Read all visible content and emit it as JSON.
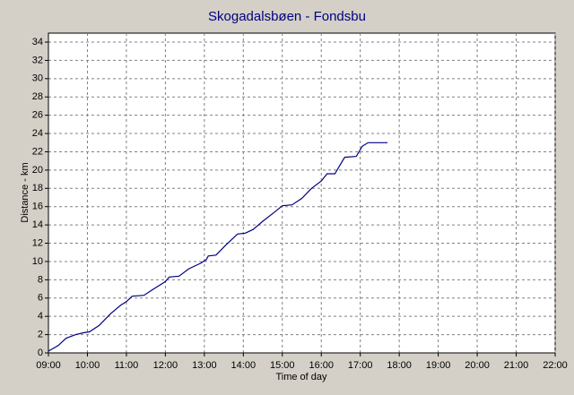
{
  "chart_data": {
    "type": "line",
    "title": "Skogadalsbøen - Fondsbu",
    "x_label": "Time of day",
    "y_label": "Distance - km",
    "x": [
      9.0,
      9.25,
      9.45,
      9.7,
      9.9,
      10.05,
      10.3,
      10.6,
      10.85,
      11.0,
      11.15,
      11.45,
      11.7,
      12.0,
      12.1,
      12.35,
      12.6,
      12.9,
      13.05,
      13.1,
      13.3,
      13.55,
      13.85,
      14.05,
      14.25,
      14.5,
      14.8,
      15.0,
      15.25,
      15.5,
      15.75,
      16.0,
      16.15,
      16.35,
      16.6,
      16.9,
      17.05,
      17.2,
      17.7
    ],
    "series": [
      {
        "name": "Distance",
        "color": "#000080",
        "values": [
          0.2,
          0.8,
          1.6,
          2.0,
          2.2,
          2.3,
          3.0,
          4.3,
          5.2,
          5.6,
          6.2,
          6.3,
          7.0,
          7.8,
          8.3,
          8.4,
          9.2,
          9.8,
          10.2,
          10.6,
          10.7,
          11.8,
          13.0,
          13.1,
          13.5,
          14.4,
          15.4,
          16.1,
          16.2,
          16.9,
          18.0,
          18.8,
          19.6,
          19.6,
          21.4,
          21.5,
          22.6,
          23.0,
          23.0
        ]
      }
    ],
    "xlim": [
      9,
      22
    ],
    "xticks": [
      {
        "value": 9,
        "label": "09:00"
      },
      {
        "value": 10,
        "label": "10:00"
      },
      {
        "value": 11,
        "label": "11:00"
      },
      {
        "value": 12,
        "label": "12:00"
      },
      {
        "value": 13,
        "label": "13:00"
      },
      {
        "value": 14,
        "label": "14:00"
      },
      {
        "value": 15,
        "label": "15:00"
      },
      {
        "value": 16,
        "label": "16:00"
      },
      {
        "value": 17,
        "label": "17:00"
      },
      {
        "value": 18,
        "label": "18:00"
      },
      {
        "value": 19,
        "label": "19:00"
      },
      {
        "value": 20,
        "label": "20:00"
      },
      {
        "value": 21,
        "label": "21:00"
      },
      {
        "value": 22,
        "label": "22:00"
      }
    ],
    "ylim": [
      0,
      34
    ],
    "yticks": [
      0,
      2,
      4,
      6,
      8,
      10,
      12,
      14,
      16,
      18,
      20,
      22,
      24,
      26,
      28,
      30,
      32,
      34
    ],
    "grid": true
  }
}
